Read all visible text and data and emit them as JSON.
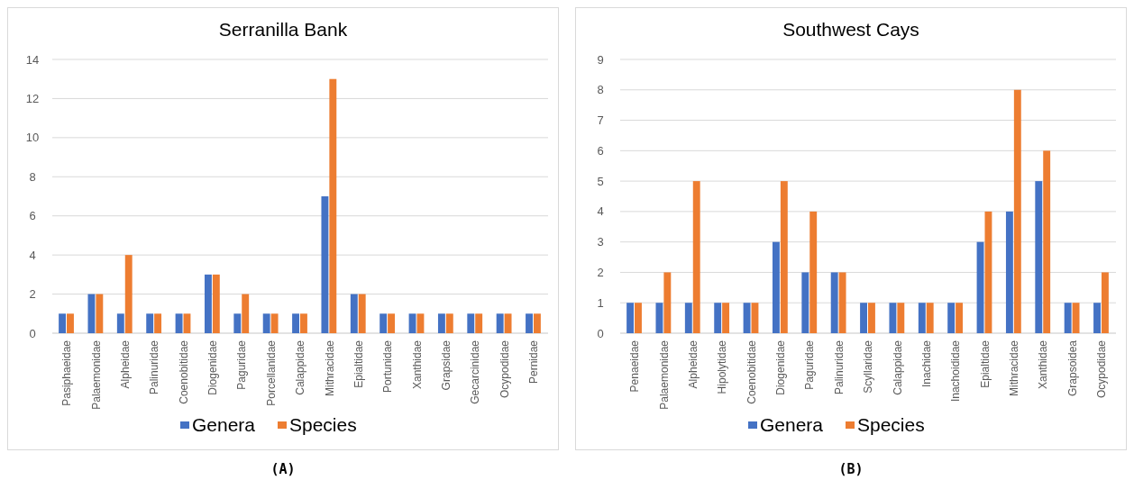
{
  "chart_data": [
    {
      "type": "bar",
      "title": "Serranilla Bank",
      "categories": [
        "Pasiphaeidae",
        "Palaemonidae",
        "Alpheidae",
        "Palinuridae",
        "Coenobitidae",
        "Diogenidae",
        "Paguridae",
        "Porcellanidae",
        "Calappidae",
        "Mithracidae",
        "Epialtidae",
        "Portunidae",
        "Xanthidae",
        "Grapsidae",
        "Gecarcinidae",
        "Ocypodidae",
        "Pernidae"
      ],
      "series": [
        {
          "name": "Genera",
          "color": "#4472c4",
          "values": [
            1,
            2,
            1,
            1,
            1,
            3,
            1,
            1,
            1,
            7,
            2,
            1,
            1,
            1,
            1,
            1,
            1
          ]
        },
        {
          "name": "Species",
          "color": "#ed7d31",
          "values": [
            1,
            2,
            4,
            1,
            1,
            3,
            2,
            1,
            1,
            13,
            2,
            1,
            1,
            1,
            1,
            1,
            1
          ]
        }
      ],
      "ylim": [
        0,
        14
      ],
      "yticks": [
        0,
        2,
        4,
        6,
        8,
        10,
        12,
        14
      ],
      "grid": "y",
      "legend": "bottom",
      "annotations": [
        "(A)"
      ]
    },
    {
      "type": "bar",
      "title": "Southwest Cays",
      "categories": [
        "Penaeidae",
        "Palaemonidae",
        "Alpheidae",
        "Hipolytidae",
        "Coenobitidae",
        "Diogenidae",
        "Paguridae",
        "Palinuridae",
        "Scyllaridae",
        "Calappidae",
        "Inachidae",
        "Inachoididae",
        "Epialtidae",
        "Mithracidae",
        "Xanthidae",
        "Grapsoidea",
        "Ocypodidae"
      ],
      "series": [
        {
          "name": "Genera",
          "color": "#4472c4",
          "values": [
            1,
            1,
            1,
            1,
            1,
            3,
            2,
            2,
            1,
            1,
            1,
            1,
            3,
            4,
            5,
            1,
            1
          ]
        },
        {
          "name": "Species",
          "color": "#ed7d31",
          "values": [
            1,
            2,
            5,
            1,
            1,
            5,
            4,
            2,
            1,
            1,
            1,
            1,
            4,
            8,
            6,
            1,
            2
          ]
        }
      ],
      "ylim": [
        0,
        9
      ],
      "yticks": [
        0,
        1,
        2,
        3,
        4,
        5,
        6,
        7,
        8,
        9
      ],
      "grid": "y",
      "legend": "bottom",
      "annotations": [
        "(B)"
      ]
    }
  ]
}
